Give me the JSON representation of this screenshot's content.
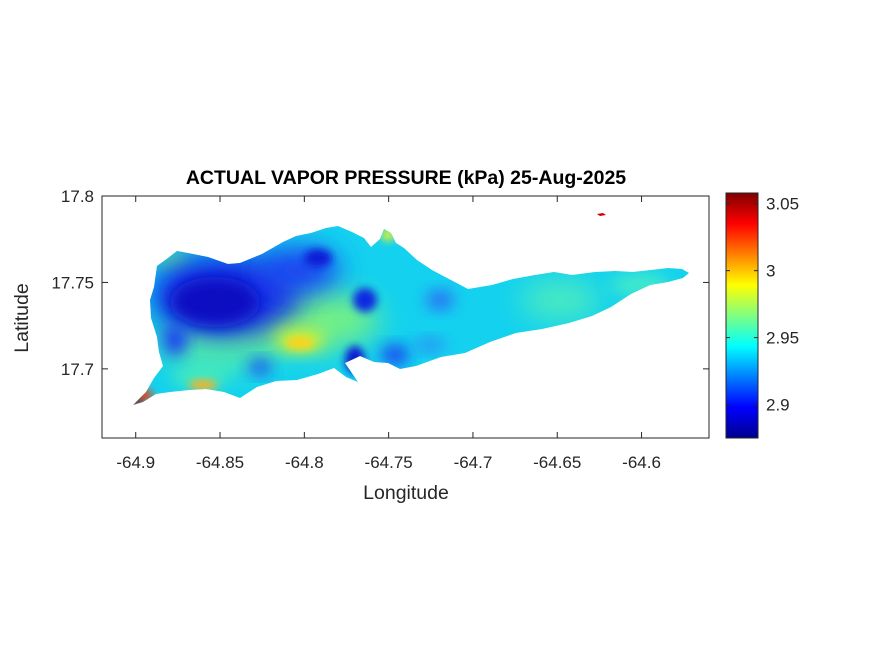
{
  "title": "ACTUAL VAPOR PRESSURE (kPa) 25-Aug-2025",
  "xlabel": "Longitude",
  "ylabel": "Latitude",
  "chart_data": {
    "type": "heatmap",
    "title": "ACTUAL VAPOR PRESSURE (kPa) 25-Aug-2025",
    "xlabel": "Longitude",
    "ylabel": "Latitude",
    "xlim": [
      -64.92,
      -64.56
    ],
    "ylim": [
      17.66,
      17.8
    ],
    "x_ticks": [
      "-64.9",
      "-64.85",
      "-64.8",
      "-64.75",
      "-64.7",
      "-64.65",
      "-64.6"
    ],
    "y_ticks": [
      "17.7",
      "17.75",
      "17.8"
    ],
    "colorbar": {
      "colormap": "jet",
      "range": [
        2.875,
        3.058
      ],
      "ticks": [
        "2.9",
        "2.95",
        "3",
        "3.05"
      ]
    },
    "grid": false,
    "features": [
      {
        "name": "low-center-west",
        "lon": -64.855,
        "lat": 17.737,
        "value": 2.885
      },
      {
        "name": "low-north-central",
        "lon": -64.81,
        "lat": 17.757,
        "value": 2.895
      },
      {
        "name": "low-central",
        "lon": -64.753,
        "lat": 17.738,
        "value": 2.9
      },
      {
        "name": "low-southeast-pocket",
        "lon": -64.758,
        "lat": 17.703,
        "value": 2.9
      },
      {
        "name": "high-south-central",
        "lon": -64.8,
        "lat": 17.716,
        "value": 2.99
      },
      {
        "name": "high-southwest-coast",
        "lon": -64.857,
        "lat": 17.689,
        "value": 3.0
      },
      {
        "name": "high-west-tip",
        "lon": -64.9,
        "lat": 17.681,
        "value": 3.05
      },
      {
        "name": "high-north-islet",
        "lon": -64.625,
        "lat": 17.788,
        "value": 3.05
      }
    ]
  }
}
